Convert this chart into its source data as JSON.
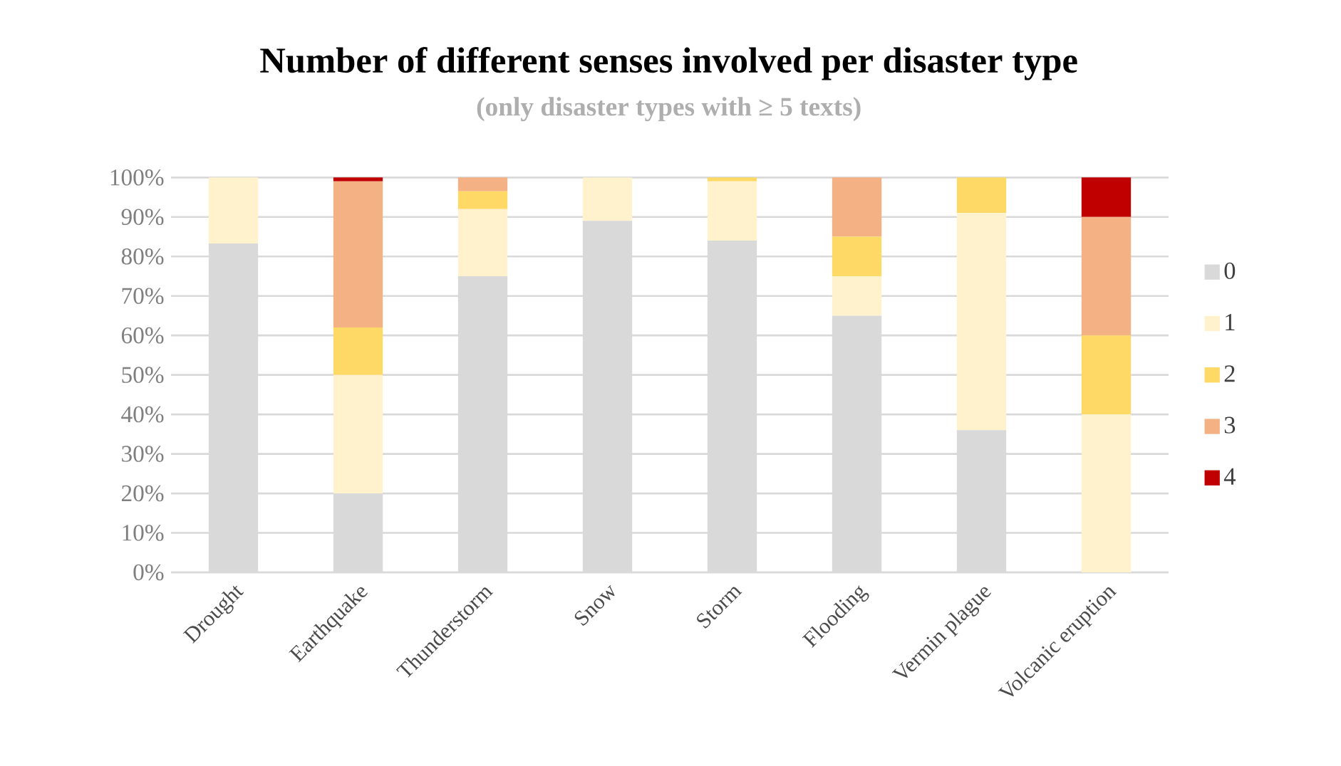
{
  "chart_data": {
    "type": "bar",
    "title": "Number of different senses involved per disaster type",
    "subtitle": "(only disaster types with ≥ 5 texts)",
    "categories": [
      "Drought",
      "Earthquake",
      "Thunderstorm",
      "Snow",
      "Storm",
      "Flooding",
      "Vermin plague",
      "Volcanic eruption"
    ],
    "stacked": true,
    "series": [
      {
        "name": "0",
        "color": "#d9d9d9",
        "values": [
          83.3,
          20,
          75,
          89,
          84,
          65,
          36,
          0
        ]
      },
      {
        "name": "1",
        "color": "#fff2cc",
        "values": [
          16.7,
          30,
          17,
          11,
          15,
          10,
          55,
          40
        ]
      },
      {
        "name": "2",
        "color": "#ffd966",
        "values": [
          0,
          12,
          4.5,
          0,
          1,
          10,
          9,
          20
        ]
      },
      {
        "name": "3",
        "color": "#f4b183",
        "values": [
          0,
          37,
          3.5,
          0,
          0,
          15,
          0,
          30
        ]
      },
      {
        "name": "4",
        "color": "#c00000",
        "values": [
          0,
          1,
          0,
          0,
          0,
          0,
          0,
          10
        ]
      }
    ],
    "ylim": [
      0,
      100
    ],
    "yticks": [
      {
        "value": 0,
        "label": "0%"
      },
      {
        "value": 10,
        "label": "10%"
      },
      {
        "value": 20,
        "label": "20%"
      },
      {
        "value": 30,
        "label": "30%"
      },
      {
        "value": 40,
        "label": "40%"
      },
      {
        "value": 50,
        "label": "50%"
      },
      {
        "value": 60,
        "label": "60%"
      },
      {
        "value": 70,
        "label": "70%"
      },
      {
        "value": 80,
        "label": "80%"
      },
      {
        "value": 90,
        "label": "90%"
      },
      {
        "value": 100,
        "label": "100%"
      }
    ],
    "grid": "y",
    "legend": "right"
  }
}
